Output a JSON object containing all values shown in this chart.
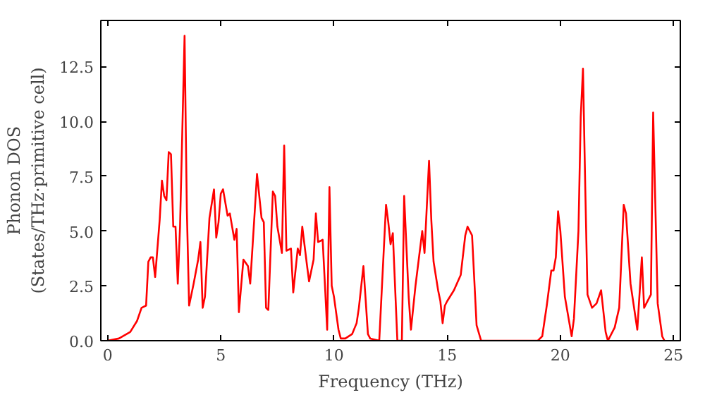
{
  "chart_data": {
    "type": "line",
    "xlabel": "Frequency (THz)",
    "ylabel": "Phonon DOS\n(States/THz·primitive cell)",
    "x": [
      0,
      0.5,
      1,
      1.3,
      1.5,
      1.7,
      1.8,
      1.9,
      2.0,
      2.1,
      2.3,
      2.4,
      2.5,
      2.6,
      2.7,
      2.8,
      2.9,
      3.0,
      3.1,
      3.2,
      3.4,
      3.5,
      3.6,
      3.8,
      4.0,
      4.1,
      4.2,
      4.3,
      4.5,
      4.7,
      4.8,
      4.9,
      5.0,
      5.1,
      5.3,
      5.4,
      5.6,
      5.7,
      5.8,
      6.0,
      6.2,
      6.3,
      6.5,
      6.6,
      6.8,
      6.9,
      7.0,
      7.1,
      7.3,
      7.4,
      7.5,
      7.7,
      7.8,
      7.9,
      8.1,
      8.2,
      8.4,
      8.5,
      8.6,
      8.8,
      8.9,
      9.1,
      9.2,
      9.3,
      9.5,
      9.7,
      9.8,
      9.9,
      10.0,
      10.2,
      10.3,
      10.5,
      10.8,
      11.0,
      11.1,
      11.3,
      11.5,
      11.6,
      12.0,
      12.3,
      12.4,
      12.5,
      12.6,
      12.8,
      13.0,
      13.1,
      13.3,
      13.4,
      13.6,
      13.9,
      14.0,
      14.2,
      14.3,
      14.4,
      14.6,
      14.7,
      14.8,
      14.9,
      15.0,
      15.3,
      15.6,
      15.8,
      15.9,
      16.1,
      16.3,
      16.5,
      19.0,
      19.2,
      19.4,
      19.6,
      19.7,
      19.8,
      19.9,
      20.0,
      20.2,
      20.4,
      20.5,
      20.6,
      20.8,
      20.9,
      21.0,
      21.1,
      21.2,
      21.4,
      21.6,
      21.8,
      22.0,
      22.1,
      22.4,
      22.6,
      22.8,
      22.9,
      23.1,
      23.4,
      23.6,
      23.7,
      23.9,
      24.0,
      24.1,
      24.3,
      24.5,
      24.6
    ],
    "series": [
      {
        "color": "#ff0000",
        "values": [
          0,
          0.1,
          0.4,
          0.9,
          1.5,
          1.6,
          3.6,
          3.8,
          3.8,
          2.9,
          5.5,
          7.3,
          6.6,
          6.4,
          8.6,
          8.5,
          5.2,
          5.2,
          2.6,
          5.2,
          13.9,
          6,
          1.6,
          2.6,
          3.7,
          4.5,
          1.5,
          2.0,
          5.6,
          6.9,
          4.7,
          5.4,
          6.7,
          6.9,
          5.7,
          5.8,
          4.6,
          5.1,
          1.3,
          3.7,
          3.4,
          2.6,
          5.9,
          7.6,
          5.6,
          5.4,
          1.5,
          1.4,
          6.8,
          6.6,
          5.2,
          4.0,
          8.9,
          4.1,
          4.2,
          2.2,
          4.2,
          3.9,
          5.2,
          3.5,
          2.7,
          3.7,
          5.8,
          4.5,
          4.6,
          0.5,
          7.0,
          2.5,
          2.0,
          0.5,
          0.1,
          0.1,
          0.3,
          0.8,
          1.5,
          3.4,
          0.3,
          0.1,
          0,
          6.2,
          5.4,
          4.4,
          4.9,
          0,
          0,
          6.6,
          2.0,
          0.5,
          2.5,
          5.0,
          4.0,
          8.2,
          5.5,
          3.6,
          2.3,
          1.8,
          0.8,
          1.6,
          1.8,
          2.3,
          3.0,
          4.8,
          5.2,
          4.8,
          0.7,
          0,
          0,
          0.2,
          1.6,
          3.2,
          3.2,
          3.8,
          5.9,
          5.0,
          2.0,
          0.8,
          0.2,
          1.0,
          5.0,
          10.2,
          12.4,
          7,
          2.1,
          1.5,
          1.7,
          2.3,
          0.4,
          0,
          0.6,
          1.5,
          6.2,
          5.8,
          2.6,
          0.5,
          3.8,
          1.5,
          1.9,
          2.1,
          10.4,
          1.7,
          0.2,
          0
        ]
      }
    ],
    "xlim": [
      -0.3,
      25.3
    ],
    "ylim": [
      0,
      14.6
    ],
    "xticks": [
      0,
      5,
      10,
      15,
      20,
      25
    ],
    "yticks": [
      {
        "value": 0,
        "label": "0.0"
      },
      2.5,
      {
        "value": 5,
        "label": "5.0"
      },
      7.5,
      {
        "value": 10,
        "label": "10.0"
      },
      12.5
    ],
    "grid": false,
    "marker": "none",
    "line_style": "solid"
  }
}
